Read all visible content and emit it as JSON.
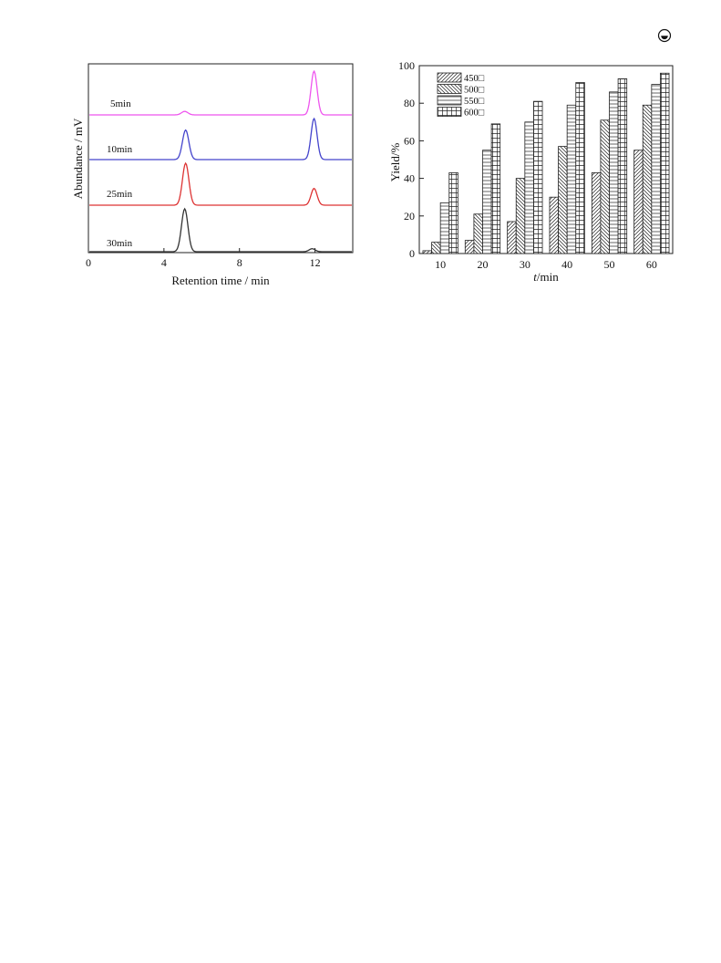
{
  "corner_icon": "circle-dot-icon",
  "chart_data": [
    {
      "type": "line",
      "xlabel": "Retention time / min",
      "ylabel": "Abundance / mV",
      "xlim": [
        0,
        14
      ],
      "xticks": [
        0,
        4,
        8,
        12
      ],
      "grid": false,
      "legend": "none",
      "series": [
        {
          "name": "5min",
          "color": "#ee55ee",
          "peaks": [
            {
              "x": 5.1,
              "h": 0.08
            },
            {
              "x": 11.95,
              "h": 1.0
            }
          ]
        },
        {
          "name": "10min",
          "color": "#4444cc",
          "peaks": [
            {
              "x": 5.15,
              "h": 0.72
            },
            {
              "x": 11.95,
              "h": 1.0
            }
          ]
        },
        {
          "name": "25min",
          "color": "#dd3333",
          "peaks": [
            {
              "x": 5.15,
              "h": 1.0
            },
            {
              "x": 11.95,
              "h": 0.4
            }
          ]
        },
        {
          "name": "30min",
          "color": "#333333",
          "peaks": [
            {
              "x": 5.1,
              "h": 1.0
            },
            {
              "x": 11.85,
              "h": 0.07
            }
          ]
        }
      ]
    },
    {
      "type": "bar",
      "xlabel_italic": "t",
      "xlabel_rest": "/min",
      "ylabel": "Yield/%",
      "ylim": [
        0,
        100
      ],
      "yticks": [
        0,
        20,
        40,
        60,
        80,
        100
      ],
      "categories": [
        "10",
        "20",
        "30",
        "40",
        "50",
        "60"
      ],
      "grid": false,
      "legend": "top-left",
      "series": [
        {
          "name": "450□",
          "pattern": "hatch-right",
          "values": [
            1.5,
            7,
            17,
            30,
            43,
            55
          ]
        },
        {
          "name": "500□",
          "pattern": "hatch-left",
          "values": [
            6,
            21,
            40,
            57,
            71,
            79
          ]
        },
        {
          "name": "550□",
          "pattern": "horizontal",
          "values": [
            27,
            55,
            70,
            79,
            86,
            90
          ]
        },
        {
          "name": "600□",
          "pattern": "grid",
          "values": [
            43,
            69,
            81,
            91,
            93,
            96
          ]
        }
      ]
    }
  ]
}
